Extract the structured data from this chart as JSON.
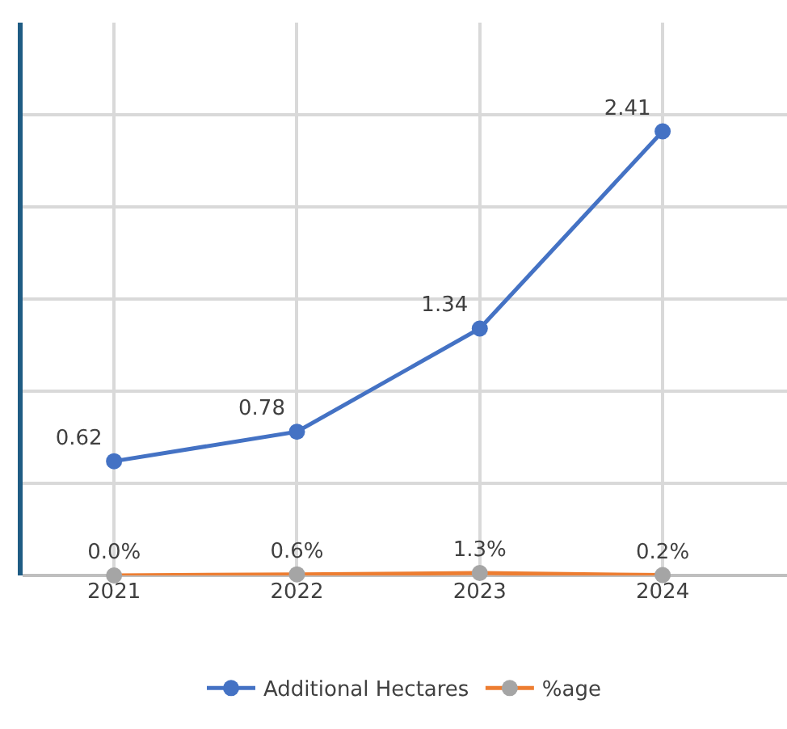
{
  "chart_data": {
    "type": "line",
    "categories": [
      "2021",
      "2022",
      "2023",
      "2024"
    ],
    "series": [
      {
        "name": "Additional Hectares",
        "color": "#4472c4",
        "values": [
          0.62,
          0.78,
          1.34,
          2.41
        ]
      },
      {
        "name": "%age",
        "color": "#ed7d31",
        "colors": [
          "#a5a5a5",
          "#a5a5a5",
          "#a5a5a5",
          "#a5a5a5"
        ],
        "values": [
          0.0,
          0.006,
          0.013,
          0.002
        ],
        "value_labels": [
          "0.0%",
          "0.6%",
          "1.3%",
          "0.2%"
        ]
      }
    ],
    "ylim": [
      0,
      3
    ],
    "yticks": [
      {
        "value": 0,
        "label": null
      },
      {
        "value": 0.5,
        "label": null
      },
      {
        "value": 1,
        "label": null
      },
      {
        "value": 1.5,
        "label": null
      },
      {
        "value": 2,
        "label": null
      },
      {
        "value": 2.5,
        "label": null
      }
    ],
    "tick_labels": "x",
    "grid": true,
    "legend": "bottom",
    "marker": "circle",
    "line_style": "solid",
    "data_labels": true
  }
}
